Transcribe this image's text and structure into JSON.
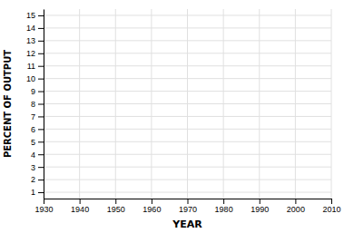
{
  "chart_data": {
    "type": "line",
    "xlabel": "YEAR",
    "ylabel": "PERCENT OF OUTPUT",
    "xlim": [
      1930,
      2010
    ],
    "ylim": [
      0.5,
      15.5
    ],
    "xticks": [
      1930,
      1940,
      1950,
      1960,
      1970,
      1980,
      1990,
      2000,
      2010
    ],
    "yticks": [
      1,
      2,
      3,
      4,
      5,
      6,
      7,
      8,
      9,
      10,
      11,
      12,
      13,
      14,
      15
    ],
    "grid": true
  }
}
